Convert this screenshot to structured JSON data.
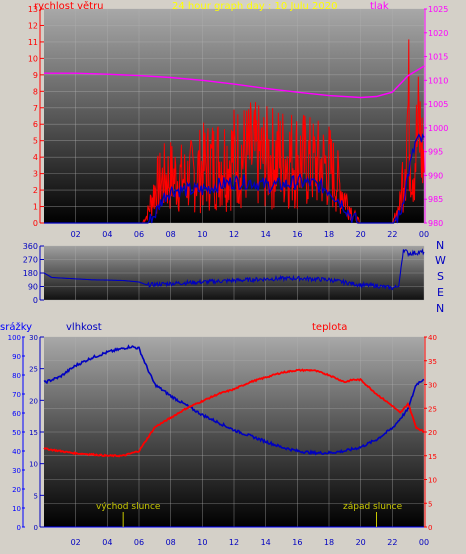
{
  "colors": {
    "frame_bg": "#d4d0c8",
    "wind_speed": "#ff0000",
    "wind_avg": "#0000c0",
    "pressure": "#ff00ff",
    "title": "#ffff00",
    "humidity": "#0000c0",
    "temperature": "#ff0000",
    "rain": "#0000ff",
    "sun": "#c8c800"
  },
  "chart_data": [
    {
      "type": "line",
      "title": "24 hour graph day : 10 Julu 2020",
      "ylabel": "rychlost větru",
      "y2label": "tlak",
      "ylim": [
        0,
        13
      ],
      "y2lim": [
        980,
        1025
      ],
      "yticks": [
        "0",
        "1",
        "2",
        "3",
        "4",
        "5",
        "6",
        "7",
        "8",
        "9",
        "10",
        "11",
        "12",
        "13"
      ],
      "y2ticks": [
        "980",
        "985",
        "990",
        "995",
        "1000",
        "1005",
        "1010",
        "1015",
        "1020",
        "1025"
      ],
      "xticks": [
        "02",
        "04",
        "06",
        "08",
        "10",
        "12",
        "14",
        "16",
        "18",
        "20",
        "22",
        "00"
      ],
      "series": [
        {
          "key": "gust",
          "x": [
            0,
            6.2,
            6.5,
            7,
            7.5,
            8,
            9,
            10,
            11,
            12,
            13,
            14,
            15,
            16,
            17,
            18,
            18.5,
            19,
            19.5,
            20,
            21,
            22,
            22.5,
            23,
            23.3,
            23.7,
            24
          ],
          "values": [
            0,
            0,
            0.8,
            3.6,
            4.6,
            5,
            4.6,
            5.8,
            6.5,
            7,
            7.2,
            6.8,
            7,
            6.8,
            6.2,
            6,
            4.5,
            2.8,
            1,
            0,
            0,
            0,
            2,
            12,
            6,
            10,
            6
          ]
        },
        {
          "key": "avg",
          "x": [
            0,
            6.5,
            7,
            7.5,
            8,
            9,
            10,
            11,
            12,
            13,
            14,
            15,
            16,
            17,
            18,
            18.5,
            19,
            19.5,
            20,
            22,
            22.5,
            23,
            23.5,
            24
          ],
          "values": [
            0,
            0,
            0.5,
            1.5,
            2,
            2,
            2,
            2.3,
            2.5,
            2.5,
            2.3,
            2.3,
            2.5,
            2.4,
            2,
            1.5,
            1,
            0.3,
            0,
            0,
            0.5,
            3,
            5,
            5
          ]
        },
        {
          "key": "pressure",
          "x": [
            0,
            2,
            4,
            6,
            8,
            10,
            12,
            14,
            16,
            18,
            20,
            21,
            22,
            23,
            24
          ],
          "values": [
            1011.5,
            1011.5,
            1011.3,
            1011,
            1010.6,
            1010,
            1009.2,
            1008.3,
            1007.5,
            1006.8,
            1006.4,
            1006.6,
            1007.5,
            1011,
            1013
          ]
        }
      ]
    },
    {
      "type": "line",
      "ylabels": [
        "N",
        "W",
        "S",
        "E",
        "N"
      ],
      "yticks": [
        "0",
        "90",
        "180",
        "270",
        "360"
      ],
      "ylim": [
        0,
        360
      ],
      "x": [
        0,
        0.5,
        3,
        5,
        6,
        6.5,
        8,
        10,
        12,
        14,
        16,
        18,
        20,
        21,
        22,
        22.4,
        22.7,
        23,
        24
      ],
      "values": [
        180,
        150,
        135,
        130,
        120,
        100,
        110,
        120,
        130,
        140,
        145,
        135,
        100,
        95,
        80,
        90,
        340,
        310,
        320
      ]
    },
    {
      "type": "line",
      "labels": {
        "rain": "srážky",
        "humidity": "vlhkost",
        "temperature": "teplota"
      },
      "rain_ticks": [
        "0",
        "10",
        "20",
        "30",
        "40",
        "50",
        "60",
        "70",
        "80",
        "90",
        "100"
      ],
      "hum_ticks": [
        "0",
        "5",
        "10",
        "15",
        "20",
        "25",
        "30"
      ],
      "temp_ticks": [
        "0",
        "5",
        "10",
        "15",
        "20",
        "25",
        "30",
        "35",
        "40"
      ],
      "rain_lim": [
        0,
        100
      ],
      "temp_lim": [
        0,
        40
      ],
      "xticks": [
        "02",
        "04",
        "06",
        "08",
        "10",
        "12",
        "14",
        "16",
        "18",
        "20",
        "22",
        "00"
      ],
      "annotations": {
        "sunrise": "východ slunce",
        "sunset": "západ slunce",
        "sunrise_x": 5.0,
        "sunset_x": 21.0
      },
      "humidity": {
        "x": [
          0,
          1,
          2,
          3,
          4,
          5,
          5.5,
          6,
          6.5,
          7,
          8,
          9,
          10,
          11,
          12,
          13,
          14,
          15,
          16,
          17,
          18,
          19,
          20,
          21,
          22,
          23,
          23.5,
          24
        ],
        "values": [
          76,
          79,
          85,
          89,
          92,
          94,
          95,
          94,
          84,
          75,
          69,
          64,
          59,
          55,
          51,
          48,
          45,
          42,
          40,
          39,
          39,
          40,
          42,
          46,
          52,
          62,
          75,
          78
        ]
      },
      "temperature": {
        "x": [
          0,
          1,
          2,
          3,
          4,
          5,
          6,
          7,
          8,
          9,
          10,
          11,
          12,
          13,
          14,
          15,
          16,
          17,
          18,
          19,
          19.5,
          20,
          21,
          22,
          22.5,
          23,
          23.5,
          24
        ],
        "values": [
          16.5,
          16,
          15.5,
          15.3,
          15,
          15,
          16,
          21,
          23,
          25,
          26.5,
          28,
          29,
          30.5,
          31.5,
          32.5,
          33,
          33,
          32,
          30.5,
          31,
          31,
          28,
          25.5,
          24,
          26,
          21,
          20
        ]
      },
      "rain": {
        "x": [
          0,
          24
        ],
        "values": [
          0,
          0
        ]
      }
    }
  ]
}
